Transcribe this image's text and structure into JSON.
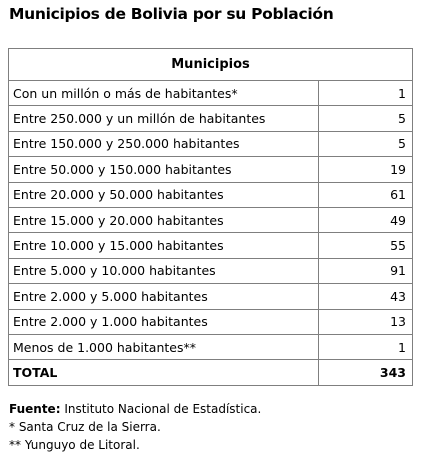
{
  "title": "Municipios de Bolivia por su Población",
  "table": {
    "header": "Municipios",
    "rows": [
      {
        "label": "Con un millón o más de habitantes*",
        "value": "1"
      },
      {
        "label": "Entre 250.000 y un millón de habitantes",
        "value": "5"
      },
      {
        "label": "Entre 150.000 y 250.000 habitantes",
        "value": "5"
      },
      {
        "label": "Entre 50.000 y 150.000 habitantes",
        "value": "19"
      },
      {
        "label": "Entre 20.000 y 50.000 habitantes",
        "value": "61"
      },
      {
        "label": "Entre 15.000 y 20.000 habitantes",
        "value": "49"
      },
      {
        "label": "Entre 10.000 y 15.000 habitantes",
        "value": "55"
      },
      {
        "label": "Entre 5.000 y 10.000 habitantes",
        "value": "91"
      },
      {
        "label": "Entre 2.000 y 5.000 habitantes",
        "value": "43"
      },
      {
        "label": "Entre 2.000 y 1.000 habitantes",
        "value": "13"
      },
      {
        "label": "Menos de 1.000 habitantes**",
        "value": "1"
      }
    ],
    "total": {
      "label": "TOTAL",
      "value": "343"
    }
  },
  "notes": {
    "source_label": "Fuente:",
    "source_text": " Instituto Nacional de Estadística.",
    "note1": "* Santa Cruz de la Sierra.",
    "note2": "** Yunguyo de Litoral."
  }
}
